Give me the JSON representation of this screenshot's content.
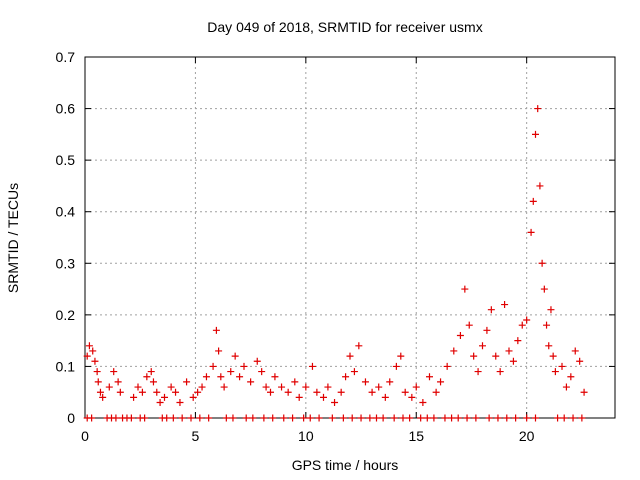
{
  "colors": {
    "series": "#e00000",
    "grid": "#a0a0a0",
    "axis": "#000000"
  },
  "chart_data": {
    "type": "scatter",
    "title": "Day 049 of 2018, SRMTID for receiver usmx",
    "xlabel": "GPS time / hours",
    "ylabel": "SRMTID / TECUs",
    "xlim": [
      0,
      24
    ],
    "ylim": [
      0,
      0.7
    ],
    "grid": true,
    "xticks": [
      0,
      5,
      10,
      15,
      20
    ],
    "yticks": [
      0,
      0.1,
      0.2,
      0.3,
      0.4,
      0.5,
      0.6,
      0.7
    ],
    "xtick_labels": [
      "0",
      "5",
      "10",
      "15",
      "20"
    ],
    "ytick_labels": [
      "0",
      "0.1",
      "0.2",
      "0.3",
      "0.4",
      "0.5",
      "0.6",
      "0.7"
    ],
    "series": [
      {
        "name": "SRMTID",
        "marker": "plus",
        "x": [
          0.1,
          0.2,
          0.35,
          0.45,
          0.55,
          0.6,
          0.7,
          0.8,
          1.1,
          1.3,
          1.5,
          1.6,
          2.2,
          2.4,
          2.6,
          2.8,
          3.0,
          3.1,
          3.25,
          3.4,
          3.6,
          3.9,
          4.1,
          4.3,
          4.6,
          4.9,
          5.1,
          5.3,
          5.5,
          5.8,
          5.95,
          6.05,
          6.15,
          6.3,
          6.6,
          6.8,
          7.0,
          7.2,
          7.5,
          7.8,
          8.0,
          8.2,
          8.4,
          8.6,
          8.9,
          9.2,
          9.5,
          9.7,
          10.0,
          10.3,
          10.5,
          10.8,
          11.0,
          11.3,
          11.6,
          11.8,
          12.0,
          12.2,
          12.4,
          12.7,
          13.0,
          13.3,
          13.6,
          13.8,
          14.1,
          14.3,
          14.5,
          14.8,
          15.0,
          15.3,
          15.6,
          15.9,
          16.1,
          16.4,
          16.7,
          17.0,
          17.2,
          17.4,
          17.6,
          17.8,
          18.0,
          18.2,
          18.4,
          18.6,
          18.8,
          19.0,
          19.2,
          19.4,
          19.6,
          19.8,
          20.0,
          20.2,
          20.3,
          20.4,
          20.5,
          20.6,
          20.7,
          20.8,
          20.9,
          21.0,
          21.1,
          21.2,
          21.3,
          21.6,
          21.8,
          22.0,
          22.2,
          22.4,
          22.6
        ],
        "y": [
          0.12,
          0.14,
          0.13,
          0.11,
          0.09,
          0.07,
          0.05,
          0.04,
          0.06,
          0.09,
          0.07,
          0.05,
          0.04,
          0.06,
          0.05,
          0.08,
          0.09,
          0.07,
          0.05,
          0.03,
          0.04,
          0.06,
          0.05,
          0.03,
          0.07,
          0.04,
          0.05,
          0.06,
          0.08,
          0.1,
          0.17,
          0.13,
          0.08,
          0.06,
          0.09,
          0.12,
          0.08,
          0.1,
          0.07,
          0.11,
          0.09,
          0.06,
          0.05,
          0.08,
          0.06,
          0.05,
          0.07,
          0.04,
          0.06,
          0.1,
          0.05,
          0.04,
          0.06,
          0.03,
          0.05,
          0.08,
          0.12,
          0.09,
          0.14,
          0.07,
          0.05,
          0.06,
          0.04,
          0.07,
          0.1,
          0.12,
          0.05,
          0.04,
          0.06,
          0.03,
          0.08,
          0.05,
          0.07,
          0.1,
          0.13,
          0.16,
          0.25,
          0.18,
          0.12,
          0.09,
          0.14,
          0.17,
          0.21,
          0.12,
          0.09,
          0.22,
          0.13,
          0.11,
          0.15,
          0.18,
          0.19,
          0.36,
          0.42,
          0.55,
          0.6,
          0.45,
          0.3,
          0.25,
          0.18,
          0.14,
          0.21,
          0.12,
          0.09,
          0.1,
          0.06,
          0.08,
          0.13,
          0.11,
          0.05
        ],
        "zeros_x": [
          0.1,
          0.3,
          1.0,
          1.2,
          1.4,
          1.7,
          1.9,
          2.1,
          2.5,
          2.7,
          3.5,
          3.7,
          4.0,
          4.4,
          4.8,
          5.2,
          5.6,
          6.4,
          6.7,
          7.3,
          7.6,
          8.1,
          8.5,
          9.0,
          9.4,
          9.9,
          10.2,
          10.6,
          11.2,
          11.7,
          12.1,
          12.5,
          12.9,
          13.2,
          13.5,
          14.0,
          14.4,
          14.7,
          15.2,
          15.5,
          15.8,
          16.3,
          16.6,
          16.9,
          17.3,
          17.7,
          18.3,
          18.7,
          19.1,
          19.5,
          20.0,
          20.4,
          21.4,
          21.7,
          22.1,
          22.5
        ]
      }
    ]
  }
}
